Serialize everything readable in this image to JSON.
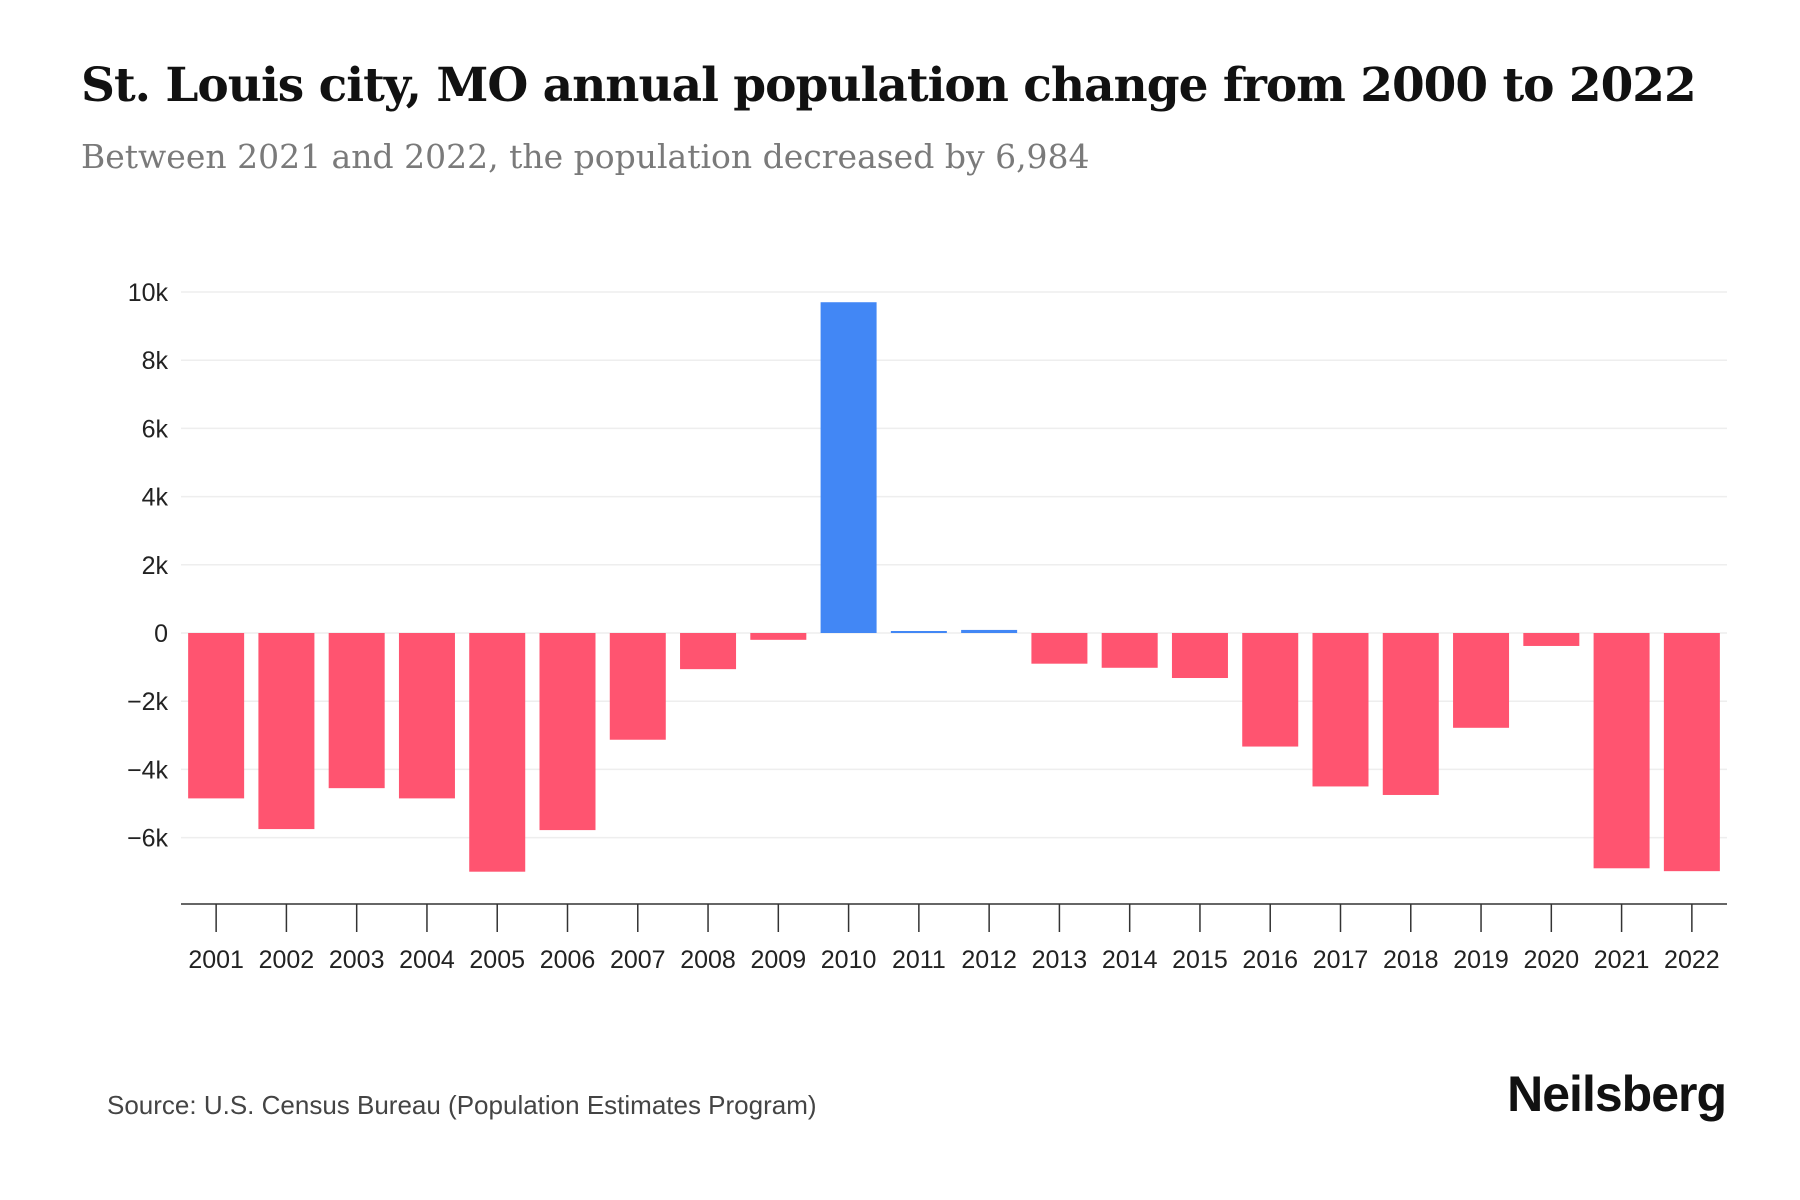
{
  "header": {
    "title": "St. Louis city, MO annual population change from 2000 to 2022",
    "subtitle": "Between 2021 and 2022, the population decreased by 6,984"
  },
  "footer": {
    "source": "Source: U.S. Census Bureau (Population Estimates Program)",
    "brand": "Neilsberg"
  },
  "colors": {
    "positive": "#4287f5",
    "negative": "#ff5470",
    "grid": "#eeeeee",
    "axis": "#333333"
  },
  "chart_data": {
    "type": "bar",
    "title": "St. Louis city, MO annual population change from 2000 to 2022",
    "xlabel": "",
    "ylabel": "",
    "ylim": [
      -8000,
      10000
    ],
    "yticks": [
      10000,
      8000,
      6000,
      4000,
      2000,
      0,
      -2000,
      -4000,
      -6000
    ],
    "ytick_labels": [
      "10k",
      "8k",
      "6k",
      "4k",
      "2k",
      "0",
      "−2k",
      "−4k",
      "−6k"
    ],
    "grid": true,
    "categories": [
      "2001",
      "2002",
      "2003",
      "2004",
      "2005",
      "2006",
      "2007",
      "2008",
      "2009",
      "2010",
      "2011",
      "2012",
      "2013",
      "2014",
      "2015",
      "2016",
      "2017",
      "2018",
      "2019",
      "2020",
      "2021",
      "2022"
    ],
    "values": [
      -4850,
      -5750,
      -4550,
      -4850,
      -7000,
      -5780,
      -3130,
      -1060,
      -200,
      9700,
      30,
      90,
      -900,
      -1020,
      -1320,
      -3330,
      -4500,
      -4750,
      -2780,
      -380,
      -6900,
      -6984
    ]
  }
}
